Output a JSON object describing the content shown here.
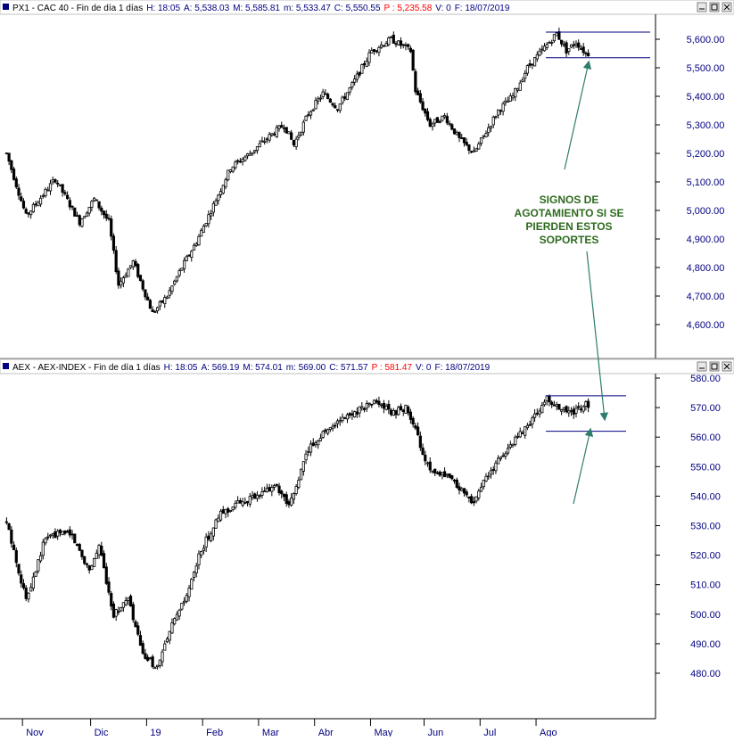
{
  "colors": {
    "header_bg": "#ffffff",
    "header_text": "#000080",
    "header_alert": "#ff0000",
    "axis_text": "#000080",
    "candle": "#000000",
    "support_line": "#000080",
    "annotation_text": "#2e6b1e",
    "arrow": "#2e7d6e"
  },
  "panels": {
    "top": {
      "header": {
        "symbol": "PX1",
        "name": "CAC 40",
        "period": "Fin de día 1 días",
        "h": "H: 18:05",
        "a": "A: 5,538.03",
        "m": "M: 5,585.81",
        "min": "m: 5,533.47",
        "c": "C: 5,550.55",
        "p": "P : 5,235.58",
        "v": "V: 0",
        "f": "F: 18/07/2019"
      }
    },
    "bottom": {
      "header": {
        "symbol": "AEX",
        "name": "AEX-INDEX",
        "period": "Fin de día 1 días",
        "h": "H: 18:05",
        "a": "A: 569.19",
        "m": "M: 574.01",
        "min": "m: 569.00",
        "c": "C: 571.57",
        "p": "P : 581.47",
        "v": "V: 0",
        "f": "F: 18/07/2019"
      }
    }
  },
  "annotation": {
    "lines": [
      "SIGNOS DE",
      "AGOTAMIENTO SI SE",
      "PIERDEN ESTOS",
      "SOPORTES"
    ]
  },
  "window_icons": [
    "minimize-icon",
    "maximize-icon",
    "close-icon"
  ],
  "chart_data": [
    {
      "type": "candlestick",
      "series": "CAC 40",
      "y_ticks": [
        "5,600.00",
        "5,500.00",
        "5,400.00",
        "5,300.00",
        "5,200.00",
        "5,100.00",
        "5,000.00",
        "4,900.00",
        "4,800.00",
        "4,700.00",
        "4,600.00"
      ],
      "y_tick_values": [
        5600,
        5500,
        5400,
        5300,
        5200,
        5100,
        5000,
        4900,
        4800,
        4700,
        4600
      ],
      "ylim": [
        4555,
        5640
      ],
      "x_labels": [
        "Nov",
        "Dic",
        "19",
        "Feb",
        "Mar",
        "Abr",
        "May",
        "Jun",
        "Jul",
        "Ago"
      ],
      "path": [
        [
          0,
          5200
        ],
        [
          8,
          4980
        ],
        [
          20,
          5110
        ],
        [
          30,
          4960
        ],
        [
          36,
          5040
        ],
        [
          42,
          4960
        ],
        [
          46,
          4740
        ],
        [
          52,
          4820
        ],
        [
          60,
          4640
        ],
        [
          66,
          4700
        ],
        [
          72,
          4800
        ],
        [
          78,
          4890
        ],
        [
          84,
          5000
        ],
        [
          92,
          5150
        ],
        [
          100,
          5200
        ],
        [
          108,
          5260
        ],
        [
          114,
          5300
        ],
        [
          118,
          5230
        ],
        [
          124,
          5340
        ],
        [
          130,
          5410
        ],
        [
          136,
          5360
        ],
        [
          142,
          5440
        ],
        [
          150,
          5560
        ],
        [
          158,
          5600
        ],
        [
          166,
          5560
        ],
        [
          168,
          5420
        ],
        [
          174,
          5300
        ],
        [
          180,
          5330
        ],
        [
          186,
          5250
        ],
        [
          192,
          5200
        ],
        [
          196,
          5260
        ],
        [
          202,
          5350
        ],
        [
          208,
          5400
        ],
        [
          214,
          5500
        ],
        [
          218,
          5540
        ],
        [
          222,
          5580
        ],
        [
          226,
          5620
        ],
        [
          230,
          5560
        ],
        [
          234,
          5590
        ],
        [
          238,
          5550
        ]
      ],
      "resistance": 5625,
      "support": 5535
    },
    {
      "type": "candlestick",
      "series": "AEX-INDEX",
      "y_ticks": [
        "580.00",
        "570.00",
        "560.00",
        "550.00",
        "540.00",
        "530.00",
        "520.00",
        "510.00",
        "500.00",
        "490.00",
        "480.00"
      ],
      "y_tick_values": [
        580,
        570,
        560,
        550,
        540,
        530,
        520,
        510,
        500,
        490,
        480
      ],
      "ylim": [
        474,
        581
      ],
      "x_labels": [
        "Nov",
        "Dic",
        "19",
        "Feb",
        "Mar",
        "Abr",
        "May",
        "Jun",
        "Jul",
        "Ago"
      ],
      "path": [
        [
          0,
          531
        ],
        [
          8,
          505
        ],
        [
          16,
          526
        ],
        [
          26,
          528
        ],
        [
          34,
          515
        ],
        [
          38,
          523
        ],
        [
          44,
          500
        ],
        [
          50,
          505
        ],
        [
          56,
          486
        ],
        [
          62,
          482
        ],
        [
          68,
          496
        ],
        [
          74,
          506
        ],
        [
          80,
          522
        ],
        [
          88,
          534
        ],
        [
          96,
          538
        ],
        [
          104,
          540
        ],
        [
          110,
          544
        ],
        [
          116,
          536
        ],
        [
          124,
          556
        ],
        [
          132,
          563
        ],
        [
          140,
          567
        ],
        [
          146,
          570
        ],
        [
          152,
          572
        ],
        [
          158,
          568
        ],
        [
          164,
          570
        ],
        [
          168,
          562
        ],
        [
          174,
          548
        ],
        [
          182,
          546
        ],
        [
          188,
          541
        ],
        [
          192,
          538
        ],
        [
          196,
          545
        ],
        [
          202,
          552
        ],
        [
          210,
          560
        ],
        [
          216,
          566
        ],
        [
          222,
          573
        ],
        [
          226,
          570
        ],
        [
          232,
          568
        ],
        [
          238,
          571
        ]
      ],
      "resistance": 574,
      "support": 562
    }
  ]
}
